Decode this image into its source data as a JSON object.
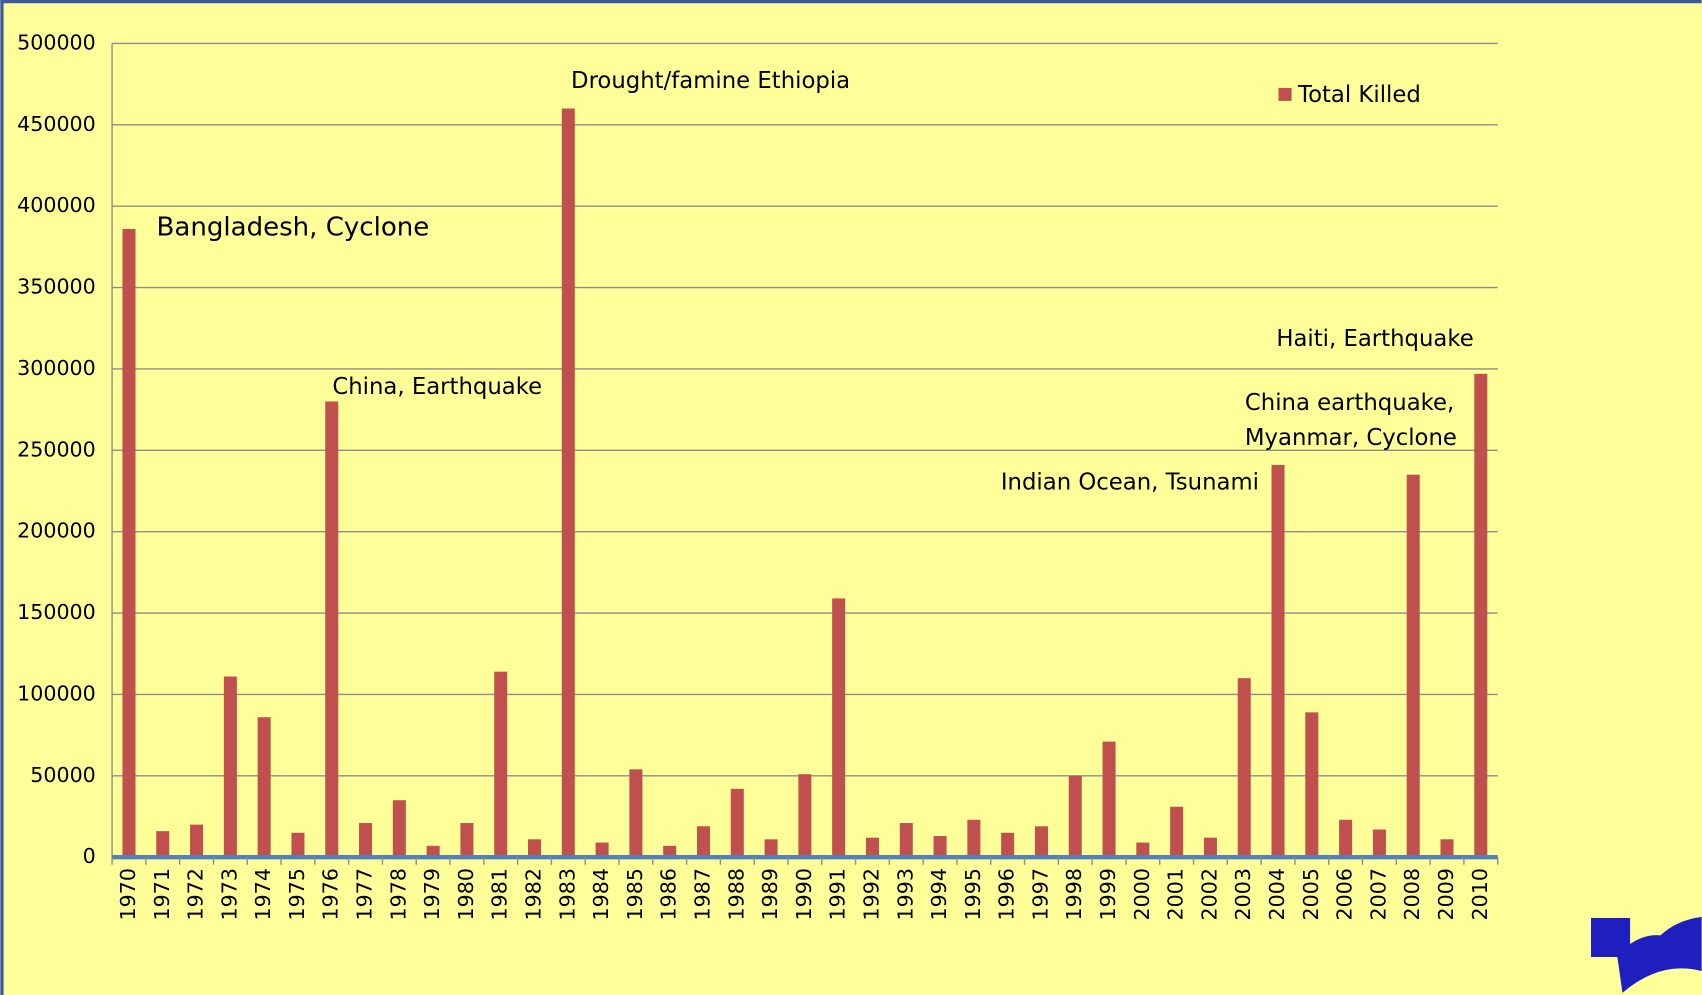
{
  "chart_data": {
    "type": "bar",
    "categories": [
      "1970",
      "1971",
      "1972",
      "1973",
      "1974",
      "1975",
      "1976",
      "1977",
      "1978",
      "1979",
      "1980",
      "1981",
      "1982",
      "1983",
      "1984",
      "1985",
      "1986",
      "1987",
      "1988",
      "1989",
      "1990",
      "1991",
      "1992",
      "1993",
      "1994",
      "1995",
      "1996",
      "1997",
      "1998",
      "1999",
      "2000",
      "2001",
      "2002",
      "2003",
      "2004",
      "2005",
      "2006",
      "2007",
      "2008",
      "2009",
      "2010"
    ],
    "series": [
      {
        "name": "Total Killed",
        "color": "#c0504d",
        "values": [
          386000,
          16000,
          20000,
          111000,
          86000,
          15000,
          280000,
          21000,
          35000,
          7000,
          21000,
          114000,
          11000,
          460000,
          9000,
          54000,
          7000,
          19000,
          42000,
          11000,
          51000,
          159000,
          12000,
          21000,
          13000,
          23000,
          15000,
          19000,
          50000,
          71000,
          9000,
          31000,
          12000,
          110000,
          241000,
          89000,
          23000,
          17000,
          235000,
          11000,
          297000
        ]
      }
    ],
    "ylim": [
      0,
      500000
    ],
    "yticks": [
      0,
      50000,
      100000,
      150000,
      200000,
      250000,
      300000,
      350000,
      400000,
      450000,
      500000
    ],
    "grid": true,
    "legend": "top-right",
    "annotations": [
      {
        "lines": [
          "Bangladesh,  Cyclone"
        ]
      },
      {
        "lines": [
          "China, Earthquake"
        ]
      },
      {
        "lines": [
          "Drought/famine Ethiopia"
        ]
      },
      {
        "lines": [
          "Indian Ocean, Tsunami"
        ]
      },
      {
        "lines": [
          "China earthquake,",
          "Myanmar, Cyclone"
        ]
      },
      {
        "lines": [
          "Haiti, Earthquake"
        ]
      }
    ]
  }
}
